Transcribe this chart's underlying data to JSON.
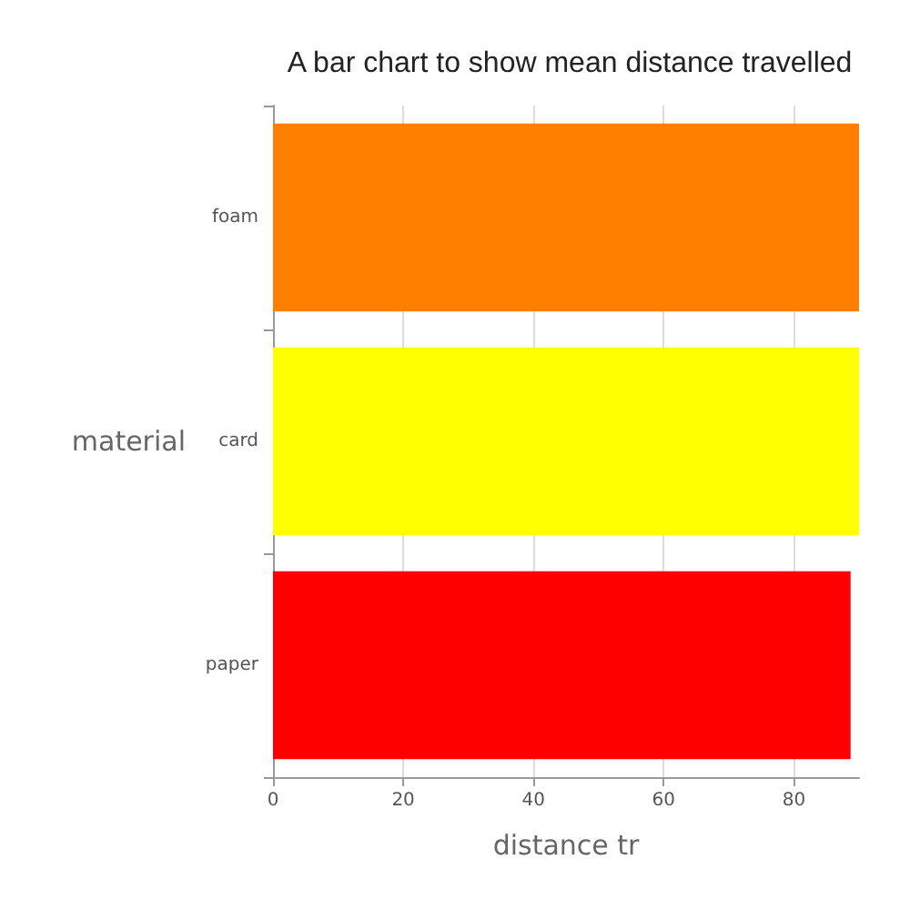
{
  "chart_data": {
    "type": "bar",
    "orientation": "horizontal",
    "title": "A bar chart to show mean distance travelled",
    "xlabel": "distance tr",
    "ylabel": "material",
    "categories": [
      "foam",
      "card",
      "paper"
    ],
    "values": [
      90,
      90,
      88.7
    ],
    "colors": [
      "#ff8000",
      "#ffff00",
      "#ff0000"
    ],
    "xlim": [
      0,
      90
    ],
    "xticks": [
      0,
      20,
      40,
      60,
      80
    ],
    "grid": "x"
  }
}
